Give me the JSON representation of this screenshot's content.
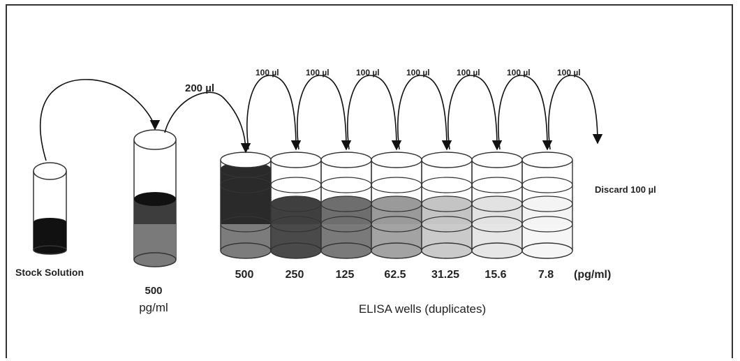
{
  "transfer_labels": {
    "first": "200 µl",
    "serial": [
      "100 µl",
      "100 µl",
      "100 µl",
      "100 µl",
      "100 µl",
      "100 µl",
      "100 µl"
    ]
  },
  "discard_label": "Discard 100 µl",
  "stock_label": "Stock Solution",
  "tube2_label": {
    "value": "500",
    "unit": "pg/ml"
  },
  "wells": [
    {
      "value": "500"
    },
    {
      "value": "250"
    },
    {
      "value": "125"
    },
    {
      "value": "62.5"
    },
    {
      "value": "31.25"
    },
    {
      "value": "15.6"
    },
    {
      "value": "7.8"
    }
  ],
  "unit_label": "(pg/ml)",
  "caption": "ELISA wells (duplicates)"
}
